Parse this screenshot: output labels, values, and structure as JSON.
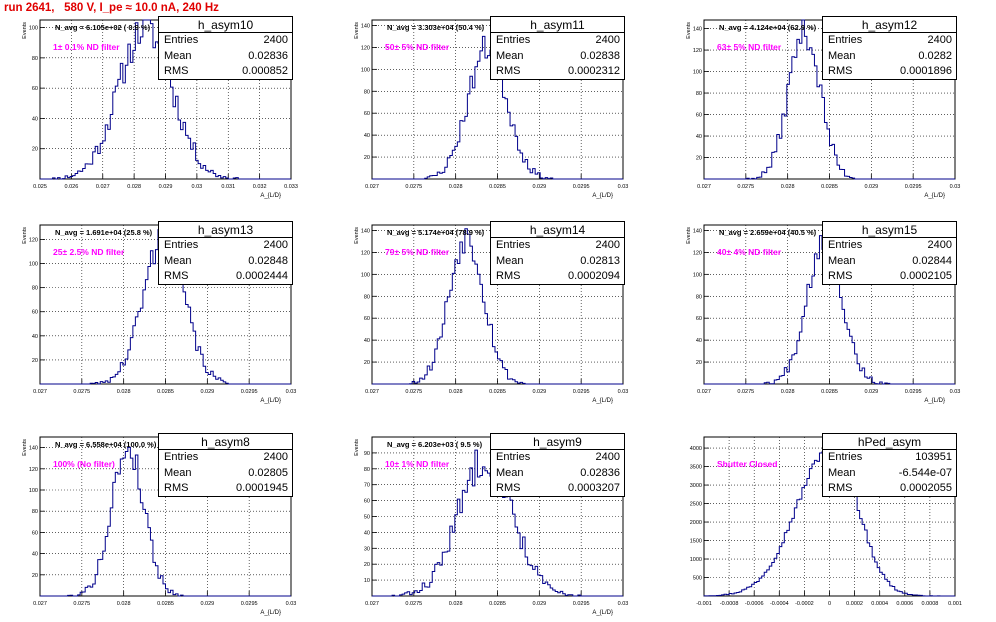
{
  "page": {
    "title": "run 2641,   580 V, I_pe ≈ 10.0 nA, 240 Hz"
  },
  "colors": {
    "histogram": "#00008b",
    "annotation": "#ff00ff",
    "title": "#e00000"
  },
  "stats_labels": {
    "entries": "Entries",
    "mean": "Mean",
    "rms": "RMS"
  },
  "chart_data": [
    {
      "type": "histogram",
      "name": "h_asym10",
      "header": "N_avg = 6.105e+02 ( 0.9 %)",
      "annotation": "1± 0.1% ND filter",
      "ylabel": "Events",
      "xlabel": "A_{L/D}",
      "xlim": [
        0.025,
        0.033
      ],
      "ylim": [
        0,
        105
      ],
      "grid": true,
      "xticks": [
        0.025,
        0.026,
        0.027,
        0.028,
        0.029,
        0.03,
        0.031,
        0.032,
        0.033
      ],
      "xtick_labels": [
        "0.025",
        "0.026",
        "0.027",
        "0.028",
        "0.029",
        "0.03",
        "0.031",
        "0.032",
        "0.033"
      ],
      "yticks": [
        20,
        40,
        60,
        80,
        100
      ],
      "ytick_labels": [
        "20",
        "40",
        "60",
        "80",
        "100"
      ],
      "stats": {
        "entries": "2400",
        "mean": "0.02836",
        "rms": "0.000852"
      },
      "dist": {
        "mean": 0.02836,
        "sigma": 0.000852,
        "peak": 100,
        "seed": 11
      }
    },
    {
      "type": "histogram",
      "name": "h_asym11",
      "header": "N_avg = 3.303e+04 (50.4 %)",
      "annotation": "50± 5% ND filter",
      "ylabel": "Events",
      "xlabel": "A_{L/D}",
      "xlim": [
        0.027,
        0.03
      ],
      "ylim": [
        0,
        145
      ],
      "grid": true,
      "xticks": [
        0.027,
        0.0275,
        0.028,
        0.0285,
        0.029,
        0.0295,
        0.03
      ],
      "xtick_labels": [
        "0.027",
        "0.0275",
        "0.028",
        "0.0285",
        "0.029",
        "0.0295",
        "0.03"
      ],
      "yticks": [
        20,
        40,
        60,
        80,
        100,
        120,
        140
      ],
      "ytick_labels": [
        "20",
        "40",
        "60",
        "80",
        "100",
        "120",
        "140"
      ],
      "stats": {
        "entries": "2400",
        "mean": "0.02838",
        "rms": "0.0002312"
      },
      "dist": {
        "mean": 0.02838,
        "sigma": 0.0002312,
        "peak": 120,
        "seed": 23
      }
    },
    {
      "type": "histogram",
      "name": "h_asym12",
      "header": "N_avg = 4.124e+04 (62.9 %)",
      "annotation": "63± 5% ND filter",
      "ylabel": "Events",
      "xlabel": "A_{L/D}",
      "xlim": [
        0.027,
        0.03
      ],
      "ylim": [
        0,
        148
      ],
      "grid": true,
      "xticks": [
        0.027,
        0.0275,
        0.028,
        0.0285,
        0.029,
        0.0295,
        0.03
      ],
      "xtick_labels": [
        "0.027",
        "0.0275",
        "0.028",
        "0.0285",
        "0.029",
        "0.0295",
        "0.03"
      ],
      "yticks": [
        20,
        40,
        60,
        80,
        100,
        120,
        140
      ],
      "ytick_labels": [
        "20",
        "40",
        "60",
        "80",
        "100",
        "120",
        "140"
      ],
      "stats": {
        "entries": "2400",
        "mean": "0.0282",
        "rms": "0.0001896"
      },
      "dist": {
        "mean": 0.0282,
        "sigma": 0.0001896,
        "peak": 138,
        "seed": 37
      }
    },
    {
      "type": "histogram",
      "name": "h_asym13",
      "header": "N_avg = 1.691e+04 (25.8 %)",
      "annotation": "25± 2.5% ND filter",
      "ylabel": "Events",
      "xlabel": "A_{L/D}",
      "xlim": [
        0.027,
        0.03
      ],
      "ylim": [
        0,
        132
      ],
      "grid": true,
      "xticks": [
        0.027,
        0.0275,
        0.028,
        0.0285,
        0.029,
        0.0295,
        0.03
      ],
      "xtick_labels": [
        "0.027",
        "0.0275",
        "0.028",
        "0.0285",
        "0.029",
        "0.0295",
        "0.03"
      ],
      "yticks": [
        20,
        40,
        60,
        80,
        100,
        120
      ],
      "ytick_labels": [
        "20",
        "40",
        "60",
        "80",
        "100",
        "120"
      ],
      "stats": {
        "entries": "2400",
        "mean": "0.02848",
        "rms": "0.0002444"
      },
      "dist": {
        "mean": 0.02848,
        "sigma": 0.0002444,
        "peak": 122,
        "seed": 41
      }
    },
    {
      "type": "histogram",
      "name": "h_asym14",
      "header": "N_avg = 5.174e+04 (78.9 %)",
      "annotation": "79± 5% ND filter",
      "ylabel": "Events",
      "xlabel": "A_{L/D}",
      "xlim": [
        0.027,
        0.03
      ],
      "ylim": [
        0,
        145
      ],
      "grid": true,
      "xticks": [
        0.027,
        0.0275,
        0.028,
        0.0285,
        0.029,
        0.0295,
        0.03
      ],
      "xtick_labels": [
        "0.027",
        "0.0275",
        "0.028",
        "0.0285",
        "0.029",
        "0.0295",
        "0.03"
      ],
      "yticks": [
        20,
        40,
        60,
        80,
        100,
        120,
        140
      ],
      "ytick_labels": [
        "20",
        "40",
        "60",
        "80",
        "100",
        "120",
        "140"
      ],
      "stats": {
        "entries": "2400",
        "mean": "0.02813",
        "rms": "0.0002094"
      },
      "dist": {
        "mean": 0.02813,
        "sigma": 0.0002094,
        "peak": 135,
        "seed": 53
      }
    },
    {
      "type": "histogram",
      "name": "h_asym15",
      "header": "N_avg = 2.659e+04 (40.5 %)",
      "annotation": "40± 4% ND filter",
      "ylabel": "Events",
      "xlabel": "A_{L/D}",
      "xlim": [
        0.027,
        0.03
      ],
      "ylim": [
        0,
        145
      ],
      "grid": true,
      "xticks": [
        0.027,
        0.0275,
        0.028,
        0.0285,
        0.029,
        0.0295,
        0.03
      ],
      "xtick_labels": [
        "0.027",
        "0.0275",
        "0.028",
        "0.0285",
        "0.029",
        "0.0295",
        "0.03"
      ],
      "yticks": [
        20,
        40,
        60,
        80,
        100,
        120,
        140
      ],
      "ytick_labels": [
        "20",
        "40",
        "60",
        "80",
        "100",
        "120",
        "140"
      ],
      "stats": {
        "entries": "2400",
        "mean": "0.02844",
        "rms": "0.0002105"
      },
      "dist": {
        "mean": 0.02844,
        "sigma": 0.0002105,
        "peak": 133,
        "seed": 67
      }
    },
    {
      "type": "histogram",
      "name": "h_asym8",
      "header": "N_avg = 6.558e+04 (100.0 %)",
      "annotation": "100% (No filter)",
      "ylabel": "Events",
      "xlabel": "A_{L/D}",
      "xlim": [
        0.027,
        0.03
      ],
      "ylim": [
        0,
        150
      ],
      "grid": true,
      "xticks": [
        0.027,
        0.0275,
        0.028,
        0.0285,
        0.029,
        0.0295,
        0.03
      ],
      "xtick_labels": [
        "0.027",
        "0.0275",
        "0.028",
        "0.0285",
        "0.029",
        "0.0295",
        "0.03"
      ],
      "yticks": [
        20,
        40,
        60,
        80,
        100,
        120,
        140
      ],
      "ytick_labels": [
        "20",
        "40",
        "60",
        "80",
        "100",
        "120",
        "140"
      ],
      "stats": {
        "entries": "2400",
        "mean": "0.02805",
        "rms": "0.0001945"
      },
      "dist": {
        "mean": 0.02805,
        "sigma": 0.0001945,
        "peak": 140,
        "seed": 79
      }
    },
    {
      "type": "histogram",
      "name": "h_asym9",
      "header": "N_avg = 6.203e+03 ( 9.5 %)",
      "annotation": "10± 1% ND filter",
      "ylabel": "Events",
      "xlabel": "A_{L/D}",
      "xlim": [
        0.027,
        0.03
      ],
      "ylim": [
        0,
        100
      ],
      "grid": true,
      "xticks": [
        0.027,
        0.0275,
        0.028,
        0.0285,
        0.029,
        0.0295,
        0.03
      ],
      "xtick_labels": [
        "0.027",
        "0.0275",
        "0.028",
        "0.0285",
        "0.029",
        "0.0295",
        "0.03"
      ],
      "yticks": [
        10,
        20,
        30,
        40,
        50,
        60,
        70,
        80,
        90
      ],
      "ytick_labels": [
        "10",
        "20",
        "30",
        "40",
        "50",
        "60",
        "70",
        "80",
        "90"
      ],
      "stats": {
        "entries": "2400",
        "mean": "0.02836",
        "rms": "0.0003207"
      },
      "dist": {
        "mean": 0.02836,
        "sigma": 0.0003207,
        "peak": 88,
        "seed": 83
      }
    },
    {
      "type": "histogram",
      "name": "hPed_asym",
      "header": "",
      "annotation": "Shutter Closed",
      "ylabel": "",
      "xlabel": "",
      "xlim": [
        -0.001,
        0.001
      ],
      "ylim": [
        0,
        4300
      ],
      "grid": true,
      "xticks": [
        -0.001,
        -0.0008,
        -0.0006,
        -0.0004,
        -0.0002,
        0,
        0.0002,
        0.0004,
        0.0006,
        0.0008,
        0.001
      ],
      "xtick_labels": [
        "-0.001",
        "-0.0008",
        "-0.0006",
        "-0.0004",
        "-0.0002",
        "0",
        "0.0002",
        "0.0004",
        "0.0006",
        "0.0008",
        "0.001"
      ],
      "yticks": [
        500,
        1000,
        1500,
        2000,
        2500,
        3000,
        3500,
        4000
      ],
      "ytick_labels": [
        "500",
        "1000",
        "1500",
        "2000",
        "2500",
        "3000",
        "3500",
        "4000"
      ],
      "stats": {
        "entries": "103951",
        "mean": "-6.544e-07",
        "rms": "0.0002055"
      },
      "dist": {
        "mean": 2e-05,
        "sigma": 0.0002055,
        "peak": 4050,
        "seed": 97,
        "skew": true
      }
    }
  ]
}
